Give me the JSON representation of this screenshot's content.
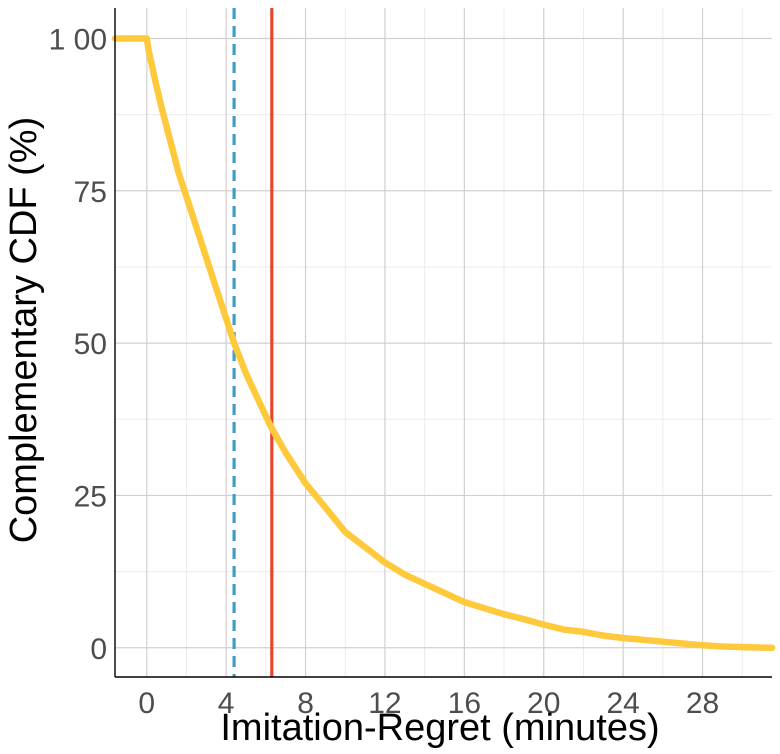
{
  "chart_data": {
    "type": "line",
    "title": "",
    "xlabel": "Imitation-Regret (minutes)",
    "ylabel": "Complementary CDF (%)",
    "xlim": [
      -1.6,
      31.5
    ],
    "ylim": [
      -4.8,
      105
    ],
    "x_ticks": [
      0,
      4,
      8,
      12,
      16,
      20,
      24,
      28
    ],
    "y_ticks": [
      0,
      25,
      50,
      75,
      100
    ],
    "y_tick_labels": [
      "0",
      "25",
      "50",
      "75",
      "1 00"
    ],
    "grid": true,
    "legend": "none",
    "series": [
      {
        "color": "#ffc93c",
        "x": [
          -1.6,
          0,
          0.1,
          0.3,
          0.5,
          0.8,
          1.2,
          1.6,
          2.0,
          2.5,
          3.0,
          3.5,
          4.0,
          4.4,
          5.0,
          6.0,
          6.3,
          7.0,
          8.0,
          9.0,
          10.0,
          11.0,
          12.0,
          13.0,
          14.0,
          15.0,
          16.0,
          17.0,
          18.0,
          19.0,
          20.0,
          21.0,
          22.0,
          23.0,
          24.0,
          25.0,
          26.0,
          27.0,
          28.0,
          29.0,
          30.0,
          31.5
        ],
        "y": [
          100,
          100,
          98,
          95,
          92,
          88,
          83,
          78,
          74,
          69,
          64,
          59,
          54,
          50,
          45,
          38,
          36,
          32,
          27,
          23,
          19,
          16.5,
          14,
          12,
          10.5,
          9,
          7.5,
          6.5,
          5.5,
          4.7,
          3.8,
          3.0,
          2.6,
          2.0,
          1.6,
          1.3,
          1.0,
          0.7,
          0.4,
          0.2,
          0.1,
          0
        ]
      }
    ],
    "reference_lines": [
      {
        "x": 4.4,
        "color": "#3e9ec9",
        "style": "dashed"
      },
      {
        "x": 6.3,
        "color": "#e8452e",
        "style": "solid"
      }
    ]
  }
}
